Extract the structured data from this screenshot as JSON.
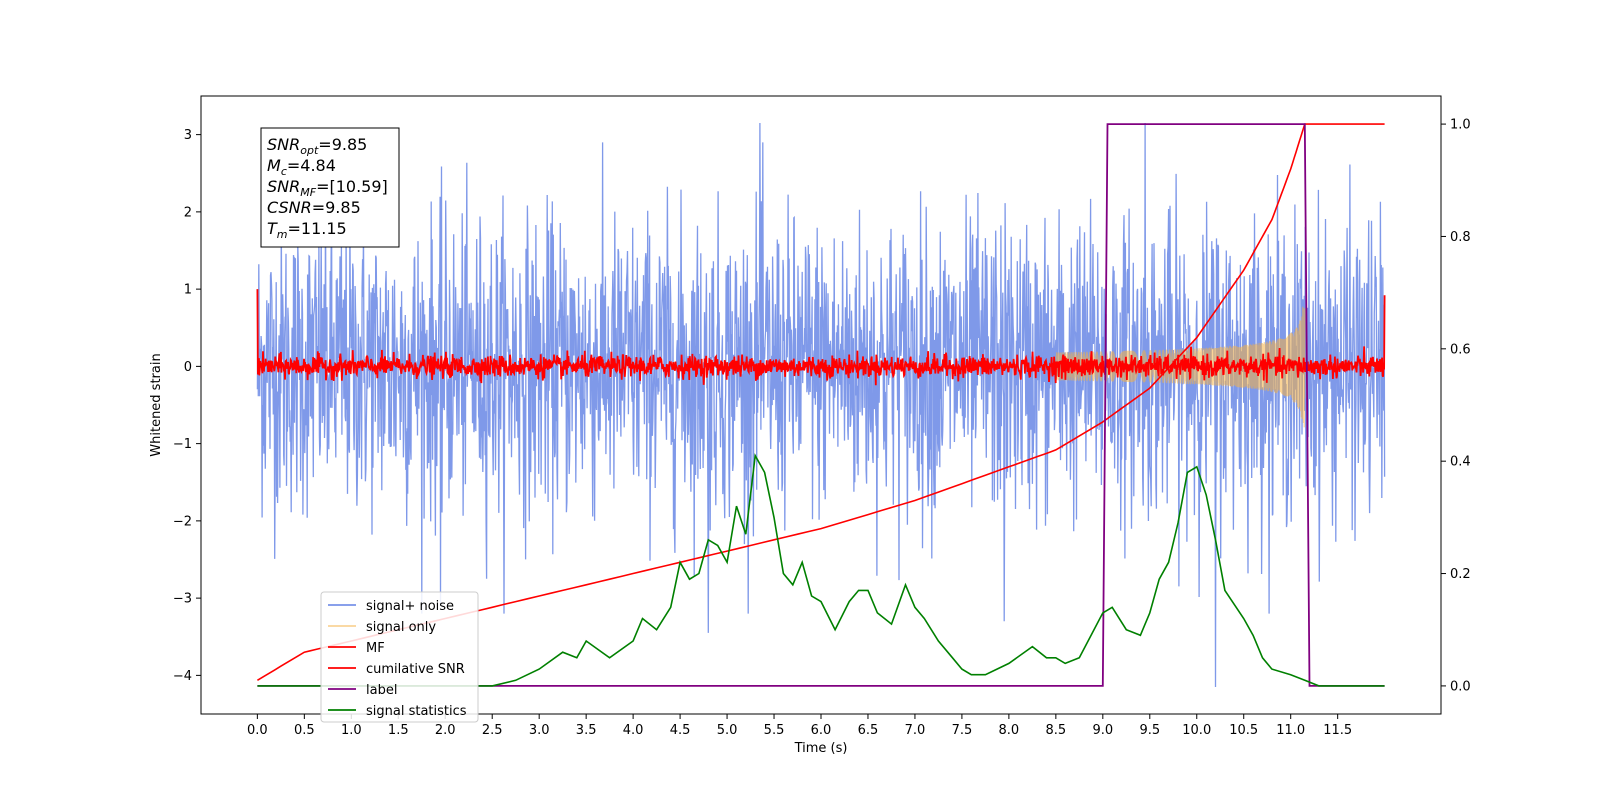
{
  "chart_data": {
    "type": "line",
    "xlabel": "Time (s)",
    "ylabel": "Whitened strain",
    "xlim": [
      -0.6,
      12.6
    ],
    "ylim": [
      -4.5,
      3.5
    ],
    "ylim_right": [
      -0.05,
      1.05
    ],
    "xticks": [
      "0.0",
      "0.5",
      "1.0",
      "1.5",
      "2.0",
      "2.5",
      "3.0",
      "3.5",
      "4.0",
      "4.5",
      "5.0",
      "5.5",
      "6.0",
      "6.5",
      "7.0",
      "7.5",
      "8.0",
      "8.5",
      "9.0",
      "9.5",
      "10.0",
      "10.5",
      "11.0",
      "11.5"
    ],
    "yticks_left": [
      "3",
      "2",
      "1",
      "0",
      "−1",
      "−2",
      "−3",
      "−4"
    ],
    "yticks_right": [
      "1.0",
      "0.8",
      "0.6",
      "0.4",
      "0.2",
      "0.0"
    ],
    "grid": false,
    "legend_position": "lower-left",
    "annotation": {
      "lines": [
        {
          "base": "SNR",
          "sub": "opt",
          "rest": "=9.85"
        },
        {
          "base": "M",
          "sub": "c",
          "rest": "=4.84"
        },
        {
          "base": "SNR",
          "sub": "MF",
          "rest": "=[10.59]"
        },
        {
          "base": "CSNR",
          "sub": "",
          "rest": "=9.85"
        },
        {
          "base": "T",
          "sub": "m",
          "rest": "=11.15"
        }
      ]
    },
    "series": [
      {
        "name": "signal+ noise",
        "color": "#7893e8",
        "axis": "left",
        "style": "noise",
        "x_range": [
          0.0,
          12.0
        ],
        "upper_envelope": 2.0,
        "lower_envelope": -2.0,
        "peaks": [
          [
            5.35,
            3.15
          ],
          [
            9.45,
            3.15
          ],
          [
            10.2,
            -4.15
          ],
          [
            4.8,
            -3.45
          ],
          [
            1.95,
            -3.1
          ],
          [
            7.95,
            -3.3
          ]
        ]
      },
      {
        "name": "signal only",
        "color": "#f5b041",
        "axis": "left",
        "style": "chirp",
        "x_range": [
          8.5,
          11.15
        ],
        "amplitude_end": 0.6
      },
      {
        "name": "MF",
        "color": "#ff0000",
        "axis": "left",
        "style": "noise-small",
        "x_range": [
          0.0,
          12.0
        ],
        "amplitude": 0.12,
        "edge_start": 1.0,
        "edge_end": 0.92
      },
      {
        "name": "cumilative SNR",
        "color": "#ff0000",
        "axis": "right",
        "x": [
          0.0,
          0.5,
          1.0,
          2.0,
          3.0,
          4.0,
          5.0,
          6.0,
          7.0,
          8.0,
          8.5,
          9.0,
          9.5,
          10.0,
          10.5,
          10.8,
          11.0,
          11.15,
          11.2,
          12.0
        ],
        "values": [
          0.01,
          0.06,
          0.08,
          0.12,
          0.16,
          0.2,
          0.24,
          0.28,
          0.33,
          0.39,
          0.42,
          0.47,
          0.53,
          0.62,
          0.74,
          0.83,
          0.92,
          1.0,
          1.0,
          1.0
        ]
      },
      {
        "name": "label",
        "color": "#800080",
        "axis": "right",
        "x": [
          0.0,
          9.0,
          9.05,
          11.15,
          11.2,
          12.0
        ],
        "values": [
          0.0,
          0.0,
          1.0,
          1.0,
          0.0,
          0.0
        ]
      },
      {
        "name": "signal statistics",
        "color": "#008000",
        "axis": "right",
        "x": [
          0.0,
          0.5,
          1.0,
          1.5,
          2.0,
          2.5,
          2.75,
          3.0,
          3.25,
          3.4,
          3.5,
          3.75,
          4.0,
          4.1,
          4.25,
          4.4,
          4.5,
          4.6,
          4.7,
          4.8,
          4.9,
          5.0,
          5.1,
          5.2,
          5.3,
          5.4,
          5.5,
          5.6,
          5.7,
          5.8,
          5.9,
          6.0,
          6.15,
          6.3,
          6.4,
          6.5,
          6.6,
          6.75,
          6.9,
          7.0,
          7.1,
          7.25,
          7.4,
          7.5,
          7.6,
          7.75,
          8.0,
          8.25,
          8.4,
          8.5,
          8.6,
          8.75,
          9.0,
          9.1,
          9.25,
          9.4,
          9.5,
          9.6,
          9.7,
          9.8,
          9.9,
          10.0,
          10.1,
          10.2,
          10.3,
          10.5,
          10.6,
          10.7,
          10.8,
          11.0,
          11.15,
          11.3,
          11.5,
          12.0
        ],
        "values": [
          0.0,
          0.0,
          0.0,
          0.0,
          0.0,
          0.0,
          0.01,
          0.03,
          0.06,
          0.05,
          0.08,
          0.05,
          0.08,
          0.12,
          0.1,
          0.14,
          0.22,
          0.19,
          0.2,
          0.26,
          0.25,
          0.22,
          0.32,
          0.27,
          0.41,
          0.38,
          0.3,
          0.2,
          0.18,
          0.22,
          0.16,
          0.15,
          0.1,
          0.15,
          0.17,
          0.17,
          0.13,
          0.11,
          0.18,
          0.14,
          0.12,
          0.08,
          0.05,
          0.03,
          0.02,
          0.02,
          0.04,
          0.07,
          0.05,
          0.05,
          0.04,
          0.05,
          0.13,
          0.14,
          0.1,
          0.09,
          0.13,
          0.19,
          0.22,
          0.29,
          0.38,
          0.39,
          0.34,
          0.26,
          0.17,
          0.12,
          0.09,
          0.05,
          0.03,
          0.02,
          0.01,
          0.0,
          0.0,
          0.0
        ]
      }
    ]
  }
}
